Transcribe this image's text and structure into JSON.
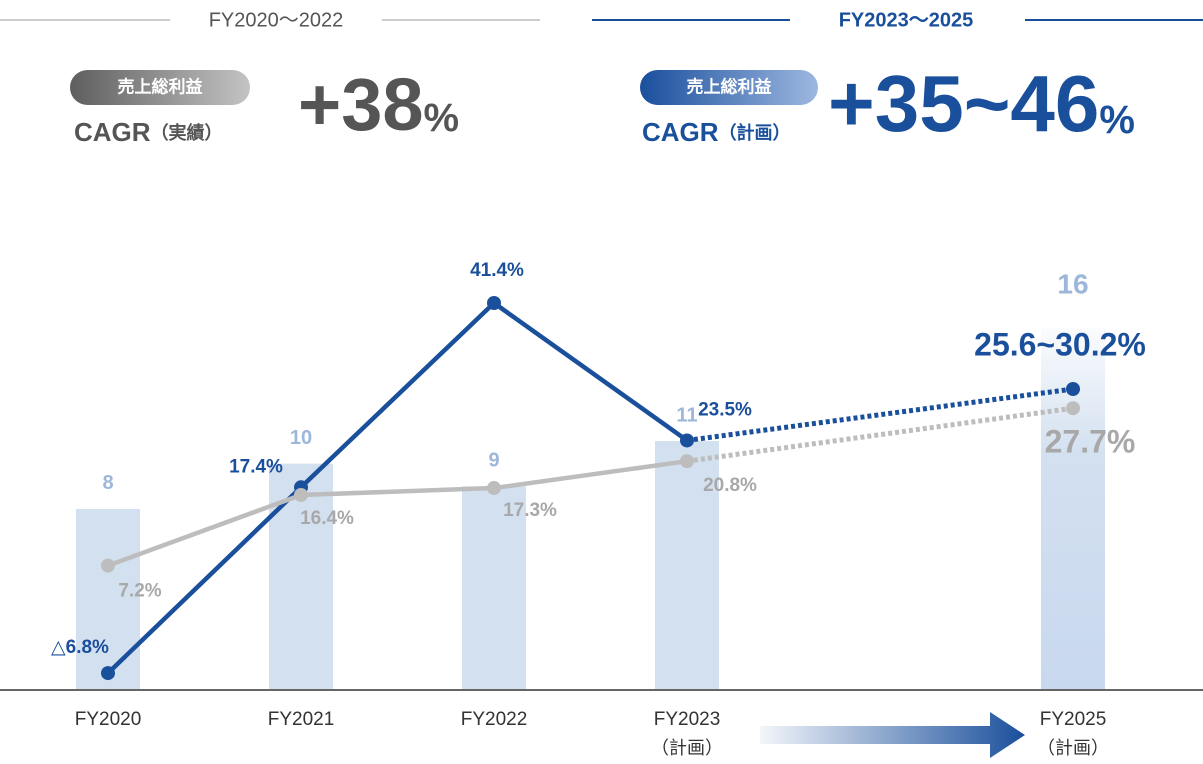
{
  "header": {
    "periods": [
      {
        "range": "FY2020～2022",
        "badge": "売上総利益",
        "metric": "CAGR",
        "basis": "（実績）",
        "growth": "+38",
        "unit": "%"
      },
      {
        "range": "FY2023～2025",
        "badge": "売上総利益",
        "metric": "CAGR",
        "basis": "（計画）",
        "growth": "+35~46",
        "unit": "%"
      }
    ]
  },
  "chart_data": {
    "type": "bar",
    "x": [
      2020,
      2021,
      2022,
      2023,
      2025
    ],
    "values": [
      8,
      10,
      9,
      11,
      16
    ],
    "color": "#d3e0f0",
    "xlim": [
      2019.5,
      2025.5
    ],
    "xticks": [
      {
        "value": 2020,
        "label": "FY2020"
      },
      {
        "value": 2021,
        "label": "FY2021"
      },
      {
        "value": 2022,
        "label": "FY2022"
      },
      {
        "value": 2023,
        "label": "FY2023",
        "note": "（計画）"
      },
      {
        "value": 2025,
        "label": "FY2025",
        "note": "（計画）"
      }
    ],
    "ylim": [
      0,
      19
    ],
    "y2lim": [
      -9,
      47
    ],
    "series": [
      {
        "color": "#1a4f9c",
        "axis": "y2",
        "values": [
          -6.8,
          17.4,
          41.4,
          23.5,
          30.2
        ],
        "value_labels": [
          "△6.8%",
          "17.4%",
          "41.4%",
          "23.5%",
          "25.6~30.2%"
        ],
        "dashed_from": 3
      },
      {
        "color": "#bdbdbd",
        "axis": "y2",
        "values": [
          7.2,
          16.4,
          17.3,
          20.8,
          27.7
        ],
        "value_labels": [
          "7.2%",
          "16.4%",
          "17.3%",
          "20.8%",
          "27.7%"
        ],
        "dashed_from": 3
      }
    ]
  }
}
